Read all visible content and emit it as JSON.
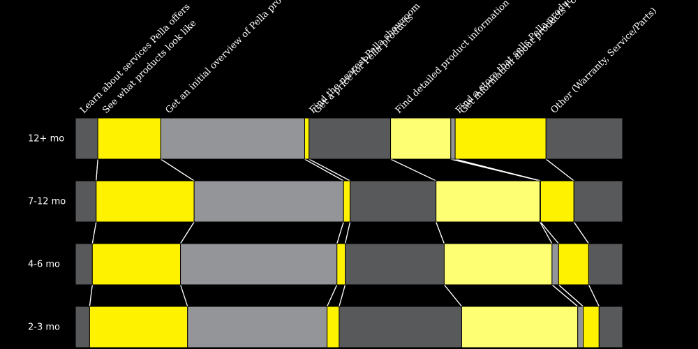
{
  "chart_data": {
    "type": "bar",
    "stacked": true,
    "normalized": true,
    "categories": [
      "Learn about services Pella offers",
      "See what products look like",
      "Get an initial overview of Pella products",
      "Find the nearest Pella showroom",
      "Get a price for Pella products",
      "Find detailed product information",
      "Find a store that sells Pella products",
      "Get information about products I currently own",
      "Other (Warranty, Service/Parts)"
    ],
    "rows": [
      {
        "label": "12+ mo",
        "values": [
          4.1,
          11.5,
          26.3,
          0.8,
          14.9,
          11.0,
          0.8,
          16.6,
          14.0
        ]
      },
      {
        "label": "7-12 mo",
        "values": [
          3.8,
          17.9,
          27.3,
          1.2,
          15.7,
          19.0,
          0.1,
          6.1,
          8.9
        ]
      },
      {
        "label": "4-6 mo",
        "values": [
          3.1,
          16.1,
          28.6,
          1.5,
          18.1,
          19.7,
          1.2,
          5.5,
          6.2
        ]
      },
      {
        "label": "2-3 mo",
        "values": [
          2.6,
          17.9,
          25.5,
          2.2,
          22.4,
          21.2,
          1.0,
          2.9,
          4.3
        ]
      }
    ],
    "colors": [
      "#58595b",
      "#fff200",
      "#939598",
      "#fff200",
      "#58595b",
      "#ffff73",
      "#939598",
      "#fff200",
      "#58595b"
    ],
    "legend": "labels above first bar, rotated",
    "grid": false
  }
}
